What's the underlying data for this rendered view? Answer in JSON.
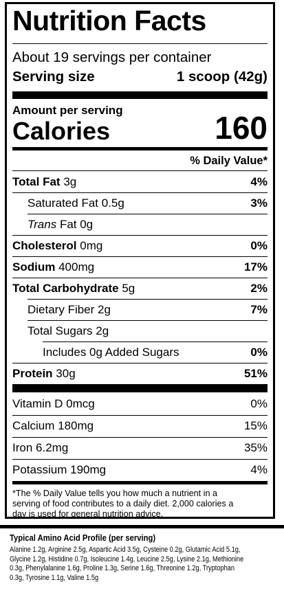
{
  "label": {
    "title": "Nutrition Facts",
    "servings_per_container": "About 19 servings per container",
    "serving_size_label": "Serving size",
    "serving_size_value": "1 scoop (42g)",
    "amount_per_serving": "Amount per serving",
    "calories_label": "Calories",
    "calories_value": "160",
    "daily_value_header": "% Daily Value*",
    "nutrients": [
      {
        "name": "Total Fat",
        "amount": "3g",
        "dv": "4%"
      },
      {
        "name": "Saturated Fat",
        "amount": "0.5g",
        "dv": "3%"
      },
      {
        "name": "Trans",
        "amount": "Fat 0g",
        "dv": ""
      },
      {
        "name": "Cholesterol",
        "amount": "0mg",
        "dv": "0%"
      },
      {
        "name": "Sodium",
        "amount": "400mg",
        "dv": "17%"
      },
      {
        "name": "Total Carbohydrate",
        "amount": "5g",
        "dv": "2%"
      },
      {
        "name": "Dietary Fiber",
        "amount": "2g",
        "dv": "7%"
      },
      {
        "name": "Total Sugars",
        "amount": "2g",
        "dv": ""
      },
      {
        "name": "Includes 0g Added Sugars",
        "amount": "",
        "dv": "0%"
      },
      {
        "name": "Protein",
        "amount": "30g",
        "dv": "51%"
      }
    ],
    "vitamins": [
      {
        "name": "Vitamin D",
        "amount": "0mcg",
        "dv": "0%"
      },
      {
        "name": "Calcium",
        "amount": "180mg",
        "dv": "15%"
      },
      {
        "name": "Iron",
        "amount": "6.2mg",
        "dv": "35%"
      },
      {
        "name": "Potassium",
        "amount": "190mg",
        "dv": "4%"
      }
    ],
    "footnote_lines": [
      "*The % Daily Value tells you how much a nutrient in a",
      "serving of food contributes to a daily diet. 2,000 calories a",
      "day is used for general nutrition advice."
    ]
  },
  "amino": {
    "title": "Typical Amino Acid Profile (per serving)",
    "lines": [
      "Alanine 1.2g, Arginine 2.5g, Aspartic Acid 3.5g, Cysteine 0.2g, Glutamic Acid 5.1g,",
      "Glycine 1.2g, Histidine 0.7g, Isoleucine 1.4g,  Leucine 2.5g, Lysine 2.1g, Methionine",
      "0.3g, Phenylalanine 1.6g,  Proline 1.3g, Serine 1.6g, Threonine 1.2g, Tryptophan",
      "0.3g, Tyrosine 1.1g, Valine 1.5g"
    ]
  }
}
